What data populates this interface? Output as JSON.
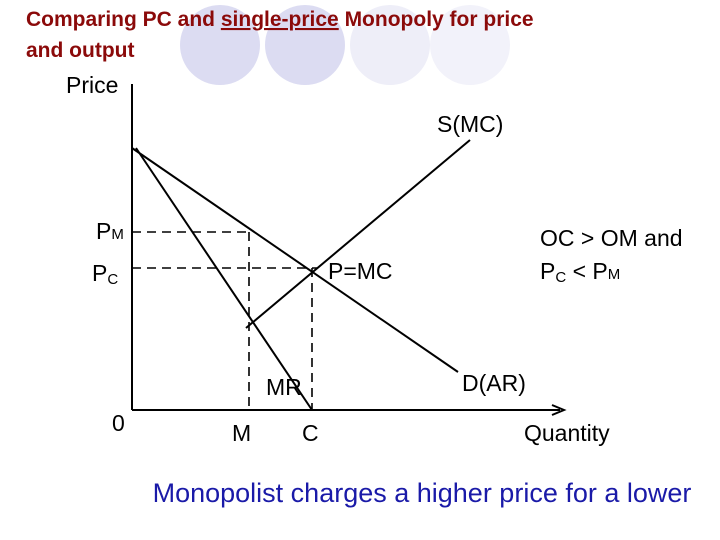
{
  "title": {
    "before": "Comparing PC and ",
    "underlined": "single-price",
    "after_line1": " Monopoly for price",
    "line2": "and output"
  },
  "axes": {
    "y_label": "Price",
    "x_label": "Quantity",
    "origin": "0"
  },
  "curves": {
    "supply": "S(MC)",
    "demand": "D(AR)",
    "marginal_revenue": "MR"
  },
  "points": {
    "pm": {
      "base": "P",
      "sub": "M"
    },
    "pc": {
      "base": "P",
      "sub": "C"
    },
    "equilibrium": "P=MC",
    "m": "M",
    "c": "C"
  },
  "note": {
    "line1": "OC > OM and",
    "p1": "P",
    "s1": "C",
    "mid": " < P",
    "s2": "M"
  },
  "caption": "Monopolist charges a higher price for a lower"
}
